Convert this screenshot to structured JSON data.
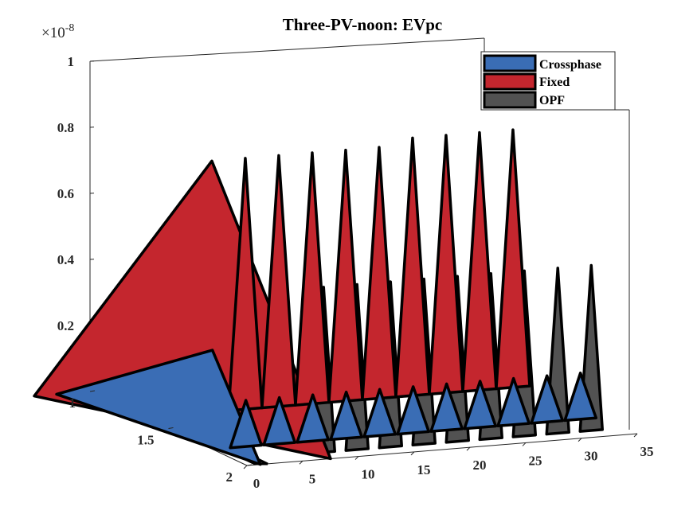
{
  "chart_data": {
    "type": "area",
    "title": "Three-PV-noon: EVpc",
    "z_exponent_label": "×10",
    "z_exponent_power": "-8",
    "xlabel": "",
    "ylabel": "",
    "zlabel": "",
    "x_range": [
      0,
      35
    ],
    "y_range": [
      1,
      2
    ],
    "z_range": [
      0,
      1
    ],
    "x_ticks": [
      "0",
      "5",
      "10",
      "15",
      "20",
      "25",
      "30",
      "35"
    ],
    "y_ticks": [
      "1",
      "1.5",
      "2"
    ],
    "z_ticks": [
      "0",
      "0.2",
      "0.4",
      "0.6",
      "0.8",
      "1"
    ],
    "grid": false,
    "legend_position": "top-right",
    "series": [
      {
        "name": "Crossphase",
        "color": "#3a6db5",
        "peak_x": [
          0,
          3,
          6,
          9,
          12,
          15,
          18,
          21,
          24,
          27,
          30,
          33
        ],
        "peak_values": [
          0.3,
          0.14,
          0.14,
          0.14,
          0.14,
          0.14,
          0.14,
          0.14,
          0.14,
          0.14,
          0.14,
          0.14
        ]
      },
      {
        "name": "Fixed",
        "color": "#c4262e",
        "peak_x": [
          6,
          9,
          12,
          15,
          18,
          21,
          24,
          27,
          30,
          33
        ],
        "peak_values": [
          0.76,
          0.76,
          0.76,
          0.76,
          0.76,
          0.76,
          0.78,
          0.78,
          0.78,
          0.78
        ]
      },
      {
        "name": "OPF",
        "color": "#525252",
        "peak_x": [
          8,
          11,
          14,
          17,
          20,
          23,
          26,
          29,
          32
        ],
        "peak_values": [
          0.5,
          0.5,
          0.5,
          0.5,
          0.5,
          0.5,
          0.5,
          0.5,
          0.5
        ]
      }
    ]
  }
}
